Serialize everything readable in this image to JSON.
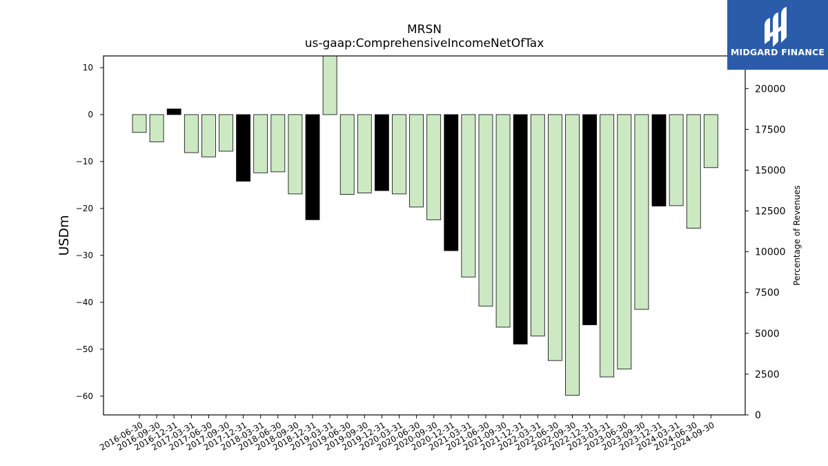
{
  "brand": {
    "name": "MIDGARD FINANCE",
    "logo_icon": "midgard-logo-icon",
    "bg_color": "#2a5caa"
  },
  "chart_data": {
    "type": "bar",
    "title": "MRSN",
    "subtitle": "us-gaap:ComprehensiveIncomeNetOfTax",
    "ylabel": "USDm",
    "y2label": "Percentage of Revenues",
    "ylim": [
      -64,
      12.5
    ],
    "y2lim": [
      0,
      22000
    ],
    "yticks": [
      10,
      0,
      -10,
      -20,
      -30,
      -40,
      -50,
      -60
    ],
    "y2ticks": [
      0,
      2500,
      5000,
      7500,
      10000,
      12500,
      15000,
      17500,
      20000
    ],
    "colors": {
      "annual": "#000000",
      "quarterly": "#cce9c4",
      "edge": "#000000"
    },
    "categories": [
      "2016-06-30",
      "2016-09-30",
      "2016-12-31",
      "2017-03-31",
      "2017-06-30",
      "2017-09-30",
      "2017-12-31",
      "2018-03-31",
      "2018-06-30",
      "2018-09-30",
      "2018-12-31",
      "2019-03-31",
      "2019-06-30",
      "2019-09-30",
      "2019-12-31",
      "2020-03-31",
      "2020-06-30",
      "2020-09-30",
      "2020-12-31",
      "2021-03-31",
      "2021-06-30",
      "2021-09-30",
      "2021-12-31",
      "2022-03-31",
      "2022-06-30",
      "2022-09-30",
      "2022-12-31",
      "2023-03-31",
      "2023-06-30",
      "2023-09-30",
      "2023-12-31",
      "2024-03-31",
      "2024-06-30",
      "2024-09-30"
    ],
    "values": [
      -3.8,
      -5.8,
      1.2,
      -8.1,
      -9.0,
      -7.8,
      -14.2,
      -12.4,
      -12.2,
      -16.9,
      -22.4,
      13.0,
      -17.0,
      -16.7,
      -16.2,
      -16.9,
      -19.7,
      -22.4,
      -29.0,
      -34.6,
      -40.8,
      -45.3,
      -48.9,
      -47.2,
      -52.4,
      -59.8,
      -44.8,
      -55.9,
      -54.2,
      -41.5,
      -19.5,
      -19.4,
      -24.2,
      -11.3
    ],
    "is_annual": [
      false,
      false,
      true,
      false,
      false,
      false,
      true,
      false,
      false,
      false,
      true,
      false,
      false,
      false,
      true,
      false,
      false,
      false,
      true,
      false,
      false,
      false,
      true,
      false,
      false,
      false,
      true,
      false,
      false,
      false,
      true,
      false,
      false,
      false
    ]
  }
}
